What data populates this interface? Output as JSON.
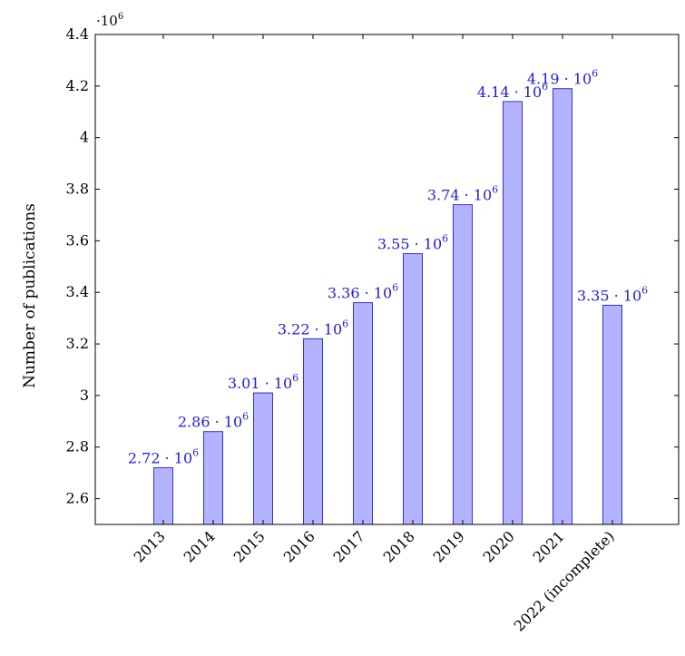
{
  "chart_data": {
    "type": "bar",
    "title": "",
    "xlabel": "",
    "ylabel": "Number of publications",
    "scale_base": "·10",
    "scale_exponent": "6",
    "scale_multiplier": 1000000,
    "ylim": [
      2.5,
      4.4
    ],
    "yticks": [
      2.6,
      2.8,
      3,
      3.2,
      3.4,
      3.6,
      3.8,
      4,
      4.2,
      4.4
    ],
    "ytick_labels": [
      "2.6",
      "2.8",
      "3",
      "3.2",
      "3.4",
      "3.6",
      "3.8",
      "4",
      "4.2",
      "4.4"
    ],
    "categories": [
      "2013",
      "2014",
      "2015",
      "2016",
      "2017",
      "2018",
      "2019",
      "2020",
      "2021",
      "2022 (incomplete)"
    ],
    "values": [
      2.72,
      2.86,
      3.01,
      3.22,
      3.36,
      3.55,
      3.74,
      4.14,
      4.19,
      3.35
    ],
    "data_labels": [
      "2.72",
      "2.86",
      "3.01",
      "3.22",
      "3.36",
      "3.55",
      "3.74",
      "4.14",
      "4.19",
      "3.35"
    ],
    "data_label_suffix": " · 10",
    "data_label_exponent": "6",
    "grid": false,
    "colors": {
      "bar_fill": "#b3b3ff",
      "bar_stroke": "#3333cc",
      "label": "#2020d0",
      "axis": "#000000"
    }
  }
}
